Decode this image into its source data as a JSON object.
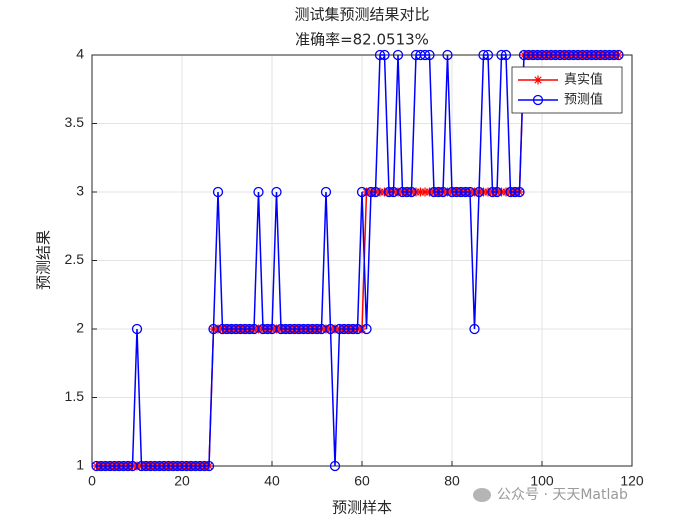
{
  "chart_data": {
    "type": "line",
    "title": "测试集预测结果对比",
    "subtitle": "准确率=82.0513%",
    "x_label": "预测样本",
    "y_label": "预测结果",
    "x": [
      1,
      2,
      3,
      4,
      5,
      6,
      7,
      8,
      9,
      10,
      11,
      12,
      13,
      14,
      15,
      16,
      17,
      18,
      19,
      20,
      21,
      22,
      23,
      24,
      25,
      26,
      27,
      28,
      29,
      30,
      31,
      32,
      33,
      34,
      35,
      36,
      37,
      38,
      39,
      40,
      41,
      42,
      43,
      44,
      45,
      46,
      47,
      48,
      49,
      50,
      51,
      52,
      53,
      54,
      55,
      56,
      57,
      58,
      59,
      60,
      61,
      62,
      63,
      64,
      65,
      66,
      67,
      68,
      69,
      70,
      71,
      72,
      73,
      74,
      75,
      76,
      77,
      78,
      79,
      80,
      81,
      82,
      83,
      84,
      85,
      86,
      87,
      88,
      89,
      90,
      91,
      92,
      93,
      94,
      95,
      96,
      97,
      98,
      99,
      100,
      101,
      102,
      103,
      104,
      105,
      106,
      107,
      108,
      109,
      110,
      111,
      112,
      113,
      114,
      115,
      116,
      117
    ],
    "series": [
      {
        "name": "真实值",
        "color": "#ff0000",
        "marker": "*",
        "values": [
          1,
          1,
          1,
          1,
          1,
          1,
          1,
          1,
          1,
          1,
          1,
          1,
          1,
          1,
          1,
          1,
          1,
          1,
          1,
          1,
          1,
          1,
          1,
          1,
          1,
          1,
          2,
          2,
          2,
          2,
          2,
          2,
          2,
          2,
          2,
          2,
          2,
          2,
          2,
          2,
          2,
          2,
          2,
          2,
          2,
          2,
          2,
          2,
          2,
          2,
          2,
          2,
          2,
          2,
          2,
          2,
          2,
          2,
          2,
          2,
          3,
          3,
          3,
          3,
          3,
          3,
          3,
          3,
          3,
          3,
          3,
          3,
          3,
          3,
          3,
          3,
          3,
          3,
          3,
          3,
          3,
          3,
          3,
          3,
          3,
          3,
          3,
          3,
          3,
          3,
          3,
          3,
          3,
          3,
          3,
          4,
          4,
          4,
          4,
          4,
          4,
          4,
          4,
          4,
          4,
          4,
          4,
          4,
          4,
          4,
          4,
          4,
          4,
          4,
          4,
          4,
          4
        ]
      },
      {
        "name": "预测值",
        "color": "#0000ff",
        "marker": "o",
        "values": [
          1,
          1,
          1,
          1,
          1,
          1,
          1,
          1,
          1,
          2,
          1,
          1,
          1,
          1,
          1,
          1,
          1,
          1,
          1,
          1,
          1,
          1,
          1,
          1,
          1,
          1,
          2,
          3,
          2,
          2,
          2,
          2,
          2,
          2,
          2,
          2,
          3,
          2,
          2,
          2,
          3,
          2,
          2,
          2,
          2,
          2,
          2,
          2,
          2,
          2,
          2,
          3,
          2,
          1,
          2,
          2,
          2,
          2,
          2,
          3,
          2,
          3,
          3,
          4,
          4,
          3,
          3,
          4,
          3,
          3,
          3,
          4,
          4,
          4,
          4,
          3,
          3,
          3,
          4,
          3,
          3,
          3,
          3,
          3,
          2,
          3,
          4,
          4,
          3,
          3,
          4,
          4,
          3,
          3,
          3,
          4,
          4,
          4,
          4,
          4,
          4,
          4,
          4,
          4,
          4,
          4,
          4,
          4,
          4,
          4,
          4,
          4,
          4,
          4,
          4,
          4,
          4
        ]
      }
    ],
    "xlim": [
      0,
      120
    ],
    "xticks": [
      0,
      20,
      40,
      60,
      80,
      100,
      120
    ],
    "ylim": [
      1,
      4
    ],
    "yticks": [
      1,
      1.5,
      2,
      2.5,
      3,
      3.5,
      4
    ],
    "grid": true,
    "legend": "northeast"
  },
  "watermark": "公众号 · 天天Matlab"
}
